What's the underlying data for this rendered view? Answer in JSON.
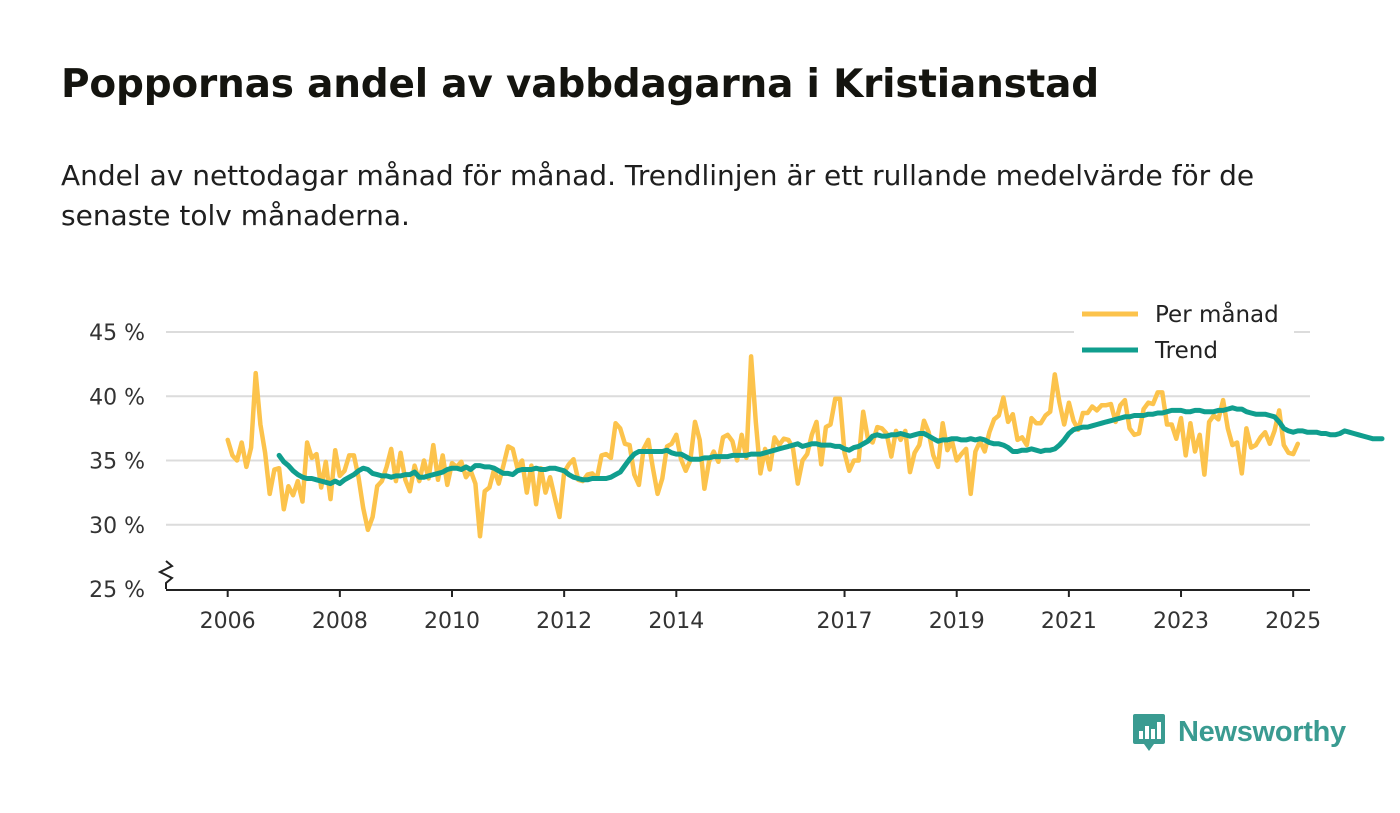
{
  "title": "Poppornas andel av vabbdagarna i Kristianstad",
  "subtitle": "Andel av nettodagar månad för månad. Trendlinjen är ett rullande medelvärde för de senaste tolv månaderna.",
  "brand": {
    "name": "Newsworthy",
    "icon": "newsworthy-logo-icon"
  },
  "colors": {
    "monthly": "#fcc34c",
    "trend": "#109e8e",
    "grid": "#dcdcdc",
    "axis": "#222222",
    "brand": "#3a9b91"
  },
  "chart_data": {
    "type": "line",
    "title": "",
    "xlabel": "",
    "ylabel": "",
    "x_start": 2006.0,
    "x_step_months": 1,
    "x_ticks": [
      2006,
      2008,
      2010,
      2012,
      2014,
      2017,
      2019,
      2021,
      2023,
      2025
    ],
    "x_tick_labels": [
      "2006",
      "2008",
      "2010",
      "2012",
      "2014",
      "2017",
      "2019",
      "2021",
      "2023",
      "2025"
    ],
    "xlim": [
      2004.9,
      2025.3
    ],
    "y_ticks": [
      25,
      30,
      35,
      40,
      45
    ],
    "y_tick_labels": [
      "25 %",
      "30 %",
      "35 %",
      "40 %",
      "45 %"
    ],
    "ylim": [
      25,
      45
    ],
    "y_axis_break": true,
    "grid": true,
    "legend_position": "top-right",
    "series": [
      {
        "name": "Per månad",
        "values": [
          36.6,
          35.4,
          35.0,
          36.4,
          34.5,
          36.0,
          41.8,
          37.8,
          35.6,
          32.4,
          34.3,
          34.4,
          31.2,
          33.0,
          32.3,
          33.4,
          31.8,
          36.4,
          35.2,
          35.5,
          32.9,
          34.9,
          32.0,
          35.8,
          33.8,
          34.2,
          35.4,
          35.4,
          33.7,
          31.3,
          29.6,
          30.6,
          33.0,
          33.4,
          34.5,
          35.9,
          33.4,
          35.6,
          33.5,
          32.6,
          34.6,
          33.4,
          35.0,
          33.6,
          36.2,
          33.5,
          35.4,
          33.1,
          34.8,
          34.5,
          34.9,
          33.7,
          34.2,
          33.2,
          29.1,
          32.6,
          32.9,
          34.3,
          33.2,
          34.6,
          36.1,
          35.9,
          34.4,
          35.0,
          32.5,
          34.6,
          31.6,
          34.4,
          32.5,
          33.7,
          32.1,
          30.6,
          34.1,
          34.7,
          35.1,
          33.5,
          33.4,
          33.9,
          34.0,
          33.6,
          35.4,
          35.5,
          35.2,
          37.9,
          37.5,
          36.3,
          36.2,
          33.9,
          33.1,
          35.9,
          36.6,
          34.4,
          32.4,
          33.6,
          36.1,
          36.3,
          37.0,
          35.1,
          34.2,
          35.0,
          38.0,
          36.6,
          32.8,
          34.9,
          35.7,
          34.9,
          36.8,
          37.0,
          36.5,
          35.0,
          37.0,
          35.2,
          43.1,
          38.0,
          34.0,
          35.9,
          34.3,
          36.8,
          36.2,
          36.7,
          36.6,
          35.9,
          33.2,
          35.0,
          35.5,
          37.0,
          38.0,
          34.7,
          37.6,
          37.8,
          39.8,
          39.8,
          35.6,
          34.2,
          35.0,
          35.0,
          38.8,
          36.7,
          36.4,
          37.6,
          37.5,
          37.1,
          35.3,
          37.3,
          36.6,
          37.3,
          34.1,
          35.6,
          36.2,
          38.1,
          37.2,
          35.4,
          34.5,
          37.9,
          35.8,
          36.5,
          35.0,
          35.5,
          35.9,
          32.4,
          35.7,
          36.5,
          35.7,
          37.2,
          38.2,
          38.5,
          39.9,
          38.0,
          38.6,
          36.6,
          36.8,
          36.2,
          38.3,
          37.9,
          37.9,
          38.5,
          38.8,
          41.7,
          39.5,
          37.8,
          39.5,
          38.1,
          37.4,
          38.7,
          38.7,
          39.2,
          38.9,
          39.3,
          39.3,
          39.4,
          38.0,
          39.3,
          39.7,
          37.5,
          37.0,
          37.1,
          39.0,
          39.5,
          39.4,
          40.3,
          40.3,
          37.8,
          37.8,
          36.7,
          38.3,
          35.4,
          37.9,
          35.7,
          37.0,
          33.9,
          38.0,
          38.5,
          38.2,
          39.7,
          37.5,
          36.2,
          36.4,
          34.0,
          37.5,
          36.0,
          36.2,
          36.8,
          37.2,
          36.3,
          37.3,
          38.9,
          36.2,
          35.6,
          35.5,
          36.3
        ]
      },
      {
        "name": "Trend",
        "start_index": 11,
        "values": [
          35.4,
          34.9,
          34.6,
          34.2,
          33.9,
          33.7,
          33.6,
          33.6,
          33.5,
          33.4,
          33.3,
          33.2,
          33.4,
          33.2,
          33.5,
          33.7,
          33.9,
          34.2,
          34.4,
          34.3,
          34.0,
          33.9,
          33.8,
          33.8,
          33.7,
          33.8,
          33.8,
          33.9,
          33.9,
          34.1,
          33.7,
          33.7,
          33.8,
          33.9,
          34.0,
          34.1,
          34.3,
          34.4,
          34.4,
          34.3,
          34.5,
          34.3,
          34.6,
          34.6,
          34.5,
          34.5,
          34.4,
          34.2,
          34.0,
          34.0,
          33.9,
          34.2,
          34.3,
          34.3,
          34.3,
          34.4,
          34.3,
          34.3,
          34.4,
          34.4,
          34.3,
          34.2,
          33.9,
          33.7,
          33.6,
          33.5,
          33.5,
          33.6,
          33.6,
          33.6,
          33.6,
          33.7,
          33.9,
          34.1,
          34.6,
          35.1,
          35.5,
          35.7,
          35.7,
          35.7,
          35.7,
          35.7,
          35.7,
          35.8,
          35.6,
          35.5,
          35.5,
          35.3,
          35.1,
          35.1,
          35.1,
          35.2,
          35.2,
          35.3,
          35.3,
          35.3,
          35.3,
          35.4,
          35.4,
          35.4,
          35.4,
          35.5,
          35.5,
          35.5,
          35.6,
          35.7,
          35.8,
          35.9,
          36.0,
          36.1,
          36.2,
          36.3,
          36.1,
          36.2,
          36.3,
          36.3,
          36.2,
          36.2,
          36.2,
          36.1,
          36.1,
          35.9,
          35.8,
          36.0,
          36.1,
          36.3,
          36.5,
          36.9,
          37.0,
          36.9,
          36.9,
          37.0,
          37.0,
          37.1,
          37.0,
          36.9,
          37.0,
          37.1,
          37.1,
          36.9,
          36.7,
          36.5,
          36.6,
          36.6,
          36.7,
          36.7,
          36.6,
          36.6,
          36.7,
          36.6,
          36.7,
          36.6,
          36.4,
          36.3,
          36.3,
          36.2,
          36.0,
          35.7,
          35.7,
          35.8,
          35.8,
          35.9,
          35.8,
          35.7,
          35.8,
          35.8,
          35.9,
          36.2,
          36.6,
          37.1,
          37.4,
          37.5,
          37.6,
          37.6,
          37.7,
          37.8,
          37.9,
          38.0,
          38.1,
          38.2,
          38.3,
          38.4,
          38.4,
          38.5,
          38.5,
          38.5,
          38.6,
          38.6,
          38.7,
          38.7,
          38.8,
          38.9,
          38.9,
          38.9,
          38.8,
          38.8,
          38.9,
          38.9,
          38.8,
          38.8,
          38.8,
          38.9,
          38.9,
          39.0,
          39.1,
          39.0,
          39.0,
          38.8,
          38.7,
          38.6,
          38.6,
          38.6,
          38.5,
          38.4,
          38.0,
          37.5,
          37.3,
          37.2,
          37.3,
          37.3,
          37.2,
          37.2,
          37.2,
          37.1,
          37.1,
          37.0,
          37.0,
          37.1,
          37.3,
          37.2,
          37.1,
          37.0,
          36.9,
          36.8,
          36.7,
          36.7,
          36.7
        ]
      }
    ]
  }
}
